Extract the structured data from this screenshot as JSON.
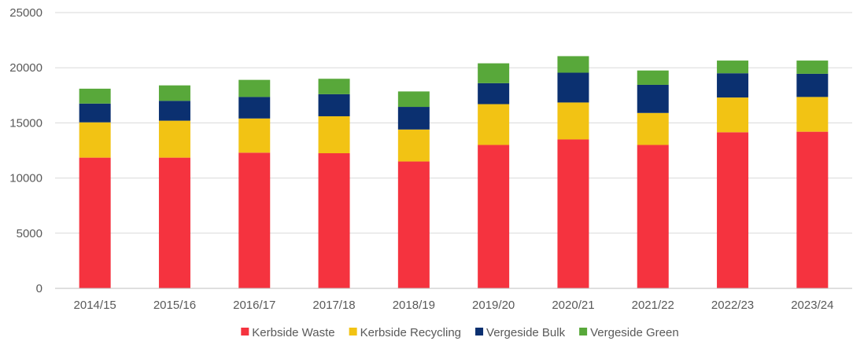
{
  "chart_data": {
    "type": "bar",
    "stacked": true,
    "categories": [
      "2014/15",
      "2015/16",
      "2016/17",
      "2017/18",
      "2018/19",
      "2019/20",
      "2020/21",
      "2021/22",
      "2022/23",
      "2023/24"
    ],
    "series": [
      {
        "name": "Kerbside Waste",
        "color": "#f5333f",
        "values": [
          11850,
          11850,
          12300,
          12250,
          11500,
          13000,
          13500,
          13000,
          14150,
          14200
        ]
      },
      {
        "name": "Kerbside Recycling",
        "color": "#f2c314",
        "values": [
          3200,
          3350,
          3100,
          3350,
          2900,
          3700,
          3350,
          2900,
          3150,
          3150
        ]
      },
      {
        "name": "Vergeside Bulk",
        "color": "#0b3070",
        "values": [
          1700,
          1800,
          1950,
          2000,
          2050,
          1900,
          2700,
          2550,
          2200,
          2100
        ]
      },
      {
        "name": "Vergeside Green",
        "color": "#58a83a",
        "values": [
          1350,
          1400,
          1550,
          1400,
          1400,
          1800,
          1500,
          1300,
          1150,
          1200
        ]
      }
    ],
    "ylim": [
      0,
      25000
    ],
    "yticks": [
      0,
      5000,
      10000,
      15000,
      20000,
      25000
    ],
    "grid": true,
    "legend": "bottom",
    "title": "",
    "xlabel": "",
    "ylabel": ""
  }
}
